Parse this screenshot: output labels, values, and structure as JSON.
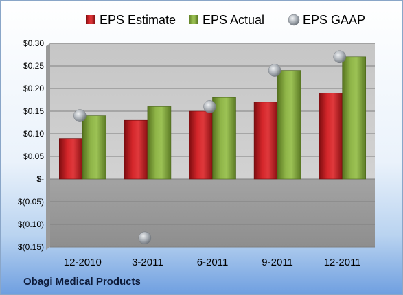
{
  "company": "Obagi Medical Products",
  "chart_data": {
    "type": "bar",
    "categories": [
      "12-2010",
      "3-2011",
      "6-2011",
      "9-2011",
      "12-2011"
    ],
    "series": [
      {
        "name": "EPS Estimate",
        "type": "bar",
        "color": "#c0161a",
        "values": [
          0.09,
          0.13,
          0.15,
          0.17,
          0.19
        ]
      },
      {
        "name": "EPS Actual",
        "type": "bar",
        "color": "#7ea33a",
        "values": [
          0.14,
          0.16,
          0.18,
          0.24,
          0.27
        ]
      },
      {
        "name": "EPS GAAP",
        "type": "scatter",
        "color": "#aab0b8",
        "values": [
          0.14,
          -0.13,
          0.16,
          0.24,
          0.27
        ]
      }
    ],
    "ylim": [
      -0.15,
      0.3
    ],
    "yticks": [
      0.3,
      0.25,
      0.2,
      0.15,
      0.1,
      0.05,
      0.0,
      -0.05,
      -0.1,
      -0.15
    ],
    "ytick_labels": [
      "$0.30",
      "$0.25",
      "$0.20",
      "$0.15",
      "$0.10",
      "$0.05",
      "$-",
      "$(0.05)",
      "$(0.10)",
      "$(0.15)"
    ],
    "grid": true,
    "legend_position": "top"
  }
}
